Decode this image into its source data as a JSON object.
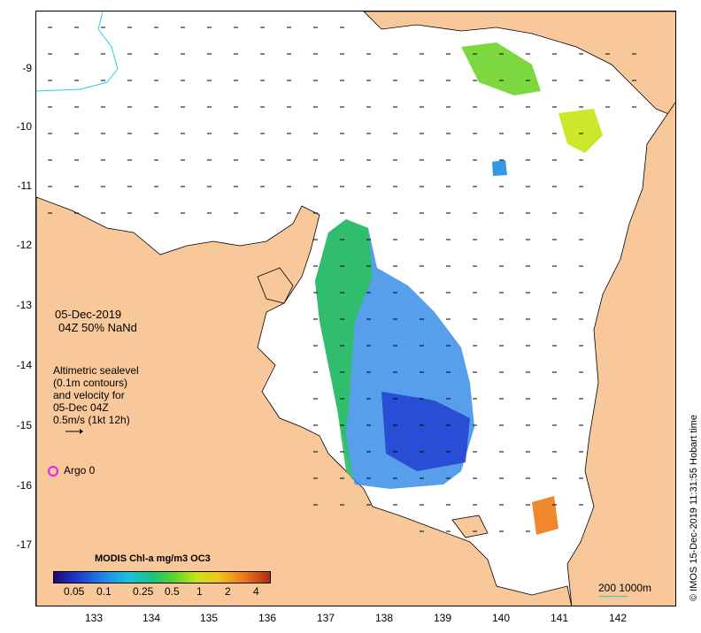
{
  "map": {
    "lat_ticks": [
      "-9",
      "-10",
      "-11",
      "-12",
      "-13",
      "-14",
      "-15",
      "-16",
      "-17"
    ],
    "lon_ticks": [
      "133",
      "134",
      "135",
      "136",
      "137",
      "138",
      "139",
      "140",
      "141",
      "142"
    ],
    "colors": {
      "land": "#f8c89a",
      "sea": "#ffffff",
      "coastline": "#000000",
      "eez_line": "#22d0e8"
    }
  },
  "annotations": {
    "date": "05-Dec-2019",
    "time_nand": "04Z  50% NaNd",
    "altimetry_lines": [
      "Altimetric sealevel",
      "(0.1m contours)",
      "and velocity for",
      "05-Dec 04Z",
      "0.5m/s (1kt 12h)"
    ],
    "argo_label": "Argo 0",
    "argo_marker_color": "#e020e0"
  },
  "legend": {
    "title": "MODIS Chl-a mg/m3 OC3",
    "labels": [
      "0.05",
      "0.1",
      "0.25",
      "0.5",
      "1",
      "2",
      "4"
    ]
  },
  "scale": {
    "label": "200  1000m"
  },
  "credit": "© IMOS 15-Dec-2019 11:31:55 Hobart time"
}
